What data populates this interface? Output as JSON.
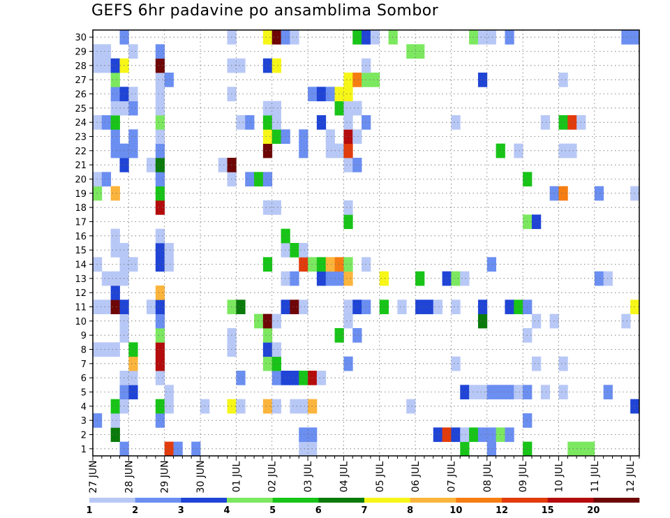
{
  "chart_data": {
    "type": "heatmap",
    "title": "GEFS 6hr padavine po ansamblima Sombor",
    "xlabel": "",
    "ylabel": "",
    "x_ticks": [
      "27 JUN",
      "28 JUN",
      "29 JUN",
      "30 JUN",
      "01 JUL",
      "02 JUL",
      "03 JUL",
      "04 JUL",
      "05 JUL",
      "06 JUL",
      "07 JUL",
      "08 JUL",
      "09 JUL",
      "10 JUL",
      "11 JUL",
      "12 JUL"
    ],
    "y_ticks": [
      "1",
      "2",
      "3",
      "4",
      "5",
      "6",
      "7",
      "8",
      "9",
      "10",
      "11",
      "12",
      "13",
      "14",
      "15",
      "16",
      "17",
      "18",
      "19",
      "20",
      "21",
      "22",
      "23",
      "24",
      "25",
      "26",
      "27",
      "28",
      "29",
      "30"
    ],
    "steps_per_day": 4,
    "x_steps": 61,
    "members": 30,
    "grid": true,
    "legend": {
      "position": "bottom",
      "boundaries": [
        "1",
        "2",
        "3",
        "4",
        "5",
        "6",
        "7",
        "8",
        "10",
        "12",
        "15",
        "20"
      ],
      "colors": [
        "#b8c8f6",
        "#6b8ef1",
        "#1f44d6",
        "#7ce860",
        "#18c418",
        "#0a7a0a",
        "#f6f618",
        "#fbb43c",
        "#f57d12",
        "#e23c0c",
        "#b40c0c",
        "#6e0606"
      ]
    },
    "cells": [
      {
        "m": 1,
        "cells": [
          [
            3,
            1
          ],
          [
            8,
            9
          ],
          [
            9,
            1
          ],
          [
            11,
            1
          ],
          [
            23,
            0
          ],
          [
            24,
            0
          ],
          [
            41,
            4
          ],
          [
            44,
            1
          ],
          [
            48,
            4
          ],
          [
            53,
            3
          ],
          [
            54,
            3
          ],
          [
            55,
            3
          ]
        ]
      },
      {
        "m": 2,
        "cells": [
          [
            2,
            5
          ],
          [
            23,
            1
          ],
          [
            24,
            1
          ],
          [
            38,
            2
          ],
          [
            39,
            9
          ],
          [
            40,
            2
          ],
          [
            41,
            0
          ],
          [
            42,
            4
          ],
          [
            43,
            1
          ],
          [
            44,
            1
          ],
          [
            45,
            3
          ],
          [
            46,
            1
          ]
        ]
      },
      {
        "m": 3,
        "cells": [
          [
            0,
            1
          ],
          [
            2,
            0
          ],
          [
            7,
            1
          ],
          [
            48,
            1
          ]
        ]
      },
      {
        "m": 4,
        "cells": [
          [
            2,
            4
          ],
          [
            3,
            0
          ],
          [
            7,
            4
          ],
          [
            8,
            0
          ],
          [
            12,
            0
          ],
          [
            15,
            6
          ],
          [
            16,
            0
          ],
          [
            19,
            7
          ],
          [
            20,
            0
          ],
          [
            22,
            0
          ],
          [
            23,
            0
          ],
          [
            24,
            7
          ],
          [
            35,
            0
          ],
          [
            60,
            2
          ]
        ]
      },
      {
        "m": 5,
        "cells": [
          [
            3,
            1
          ],
          [
            4,
            2
          ],
          [
            8,
            0
          ],
          [
            41,
            2
          ],
          [
            42,
            0
          ],
          [
            43,
            0
          ],
          [
            44,
            1
          ],
          [
            45,
            1
          ],
          [
            46,
            1
          ],
          [
            47,
            0
          ],
          [
            48,
            1
          ],
          [
            50,
            0
          ],
          [
            52,
            0
          ],
          [
            57,
            1
          ]
        ]
      },
      {
        "m": 6,
        "cells": [
          [
            3,
            0
          ],
          [
            4,
            0
          ],
          [
            7,
            0
          ],
          [
            16,
            1
          ],
          [
            20,
            1
          ],
          [
            21,
            2
          ],
          [
            22,
            2
          ],
          [
            23,
            4
          ],
          [
            24,
            10
          ],
          [
            25,
            0
          ]
        ]
      },
      {
        "m": 7,
        "cells": [
          [
            4,
            7
          ],
          [
            7,
            10
          ],
          [
            19,
            3
          ],
          [
            20,
            4
          ],
          [
            28,
            1
          ],
          [
            40,
            0
          ],
          [
            49,
            0
          ],
          [
            52,
            0
          ]
        ]
      },
      {
        "m": 8,
        "cells": [
          [
            0,
            0
          ],
          [
            1,
            0
          ],
          [
            2,
            0
          ],
          [
            4,
            4
          ],
          [
            7,
            10
          ],
          [
            15,
            0
          ],
          [
            19,
            2
          ],
          [
            20,
            0
          ]
        ]
      },
      {
        "m": 9,
        "cells": [
          [
            3,
            0
          ],
          [
            7,
            3
          ],
          [
            15,
            0
          ],
          [
            19,
            3
          ],
          [
            27,
            4
          ],
          [
            29,
            1
          ],
          [
            48,
            0
          ]
        ]
      },
      {
        "m": 10,
        "cells": [
          [
            3,
            0
          ],
          [
            7,
            1
          ],
          [
            18,
            3
          ],
          [
            19,
            11
          ],
          [
            20,
            0
          ],
          [
            28,
            0
          ],
          [
            43,
            5
          ],
          [
            49,
            0
          ],
          [
            51,
            0
          ],
          [
            59,
            0
          ]
        ]
      },
      {
        "m": 11,
        "cells": [
          [
            0,
            0
          ],
          [
            1,
            0
          ],
          [
            2,
            11
          ],
          [
            3,
            2
          ],
          [
            6,
            0
          ],
          [
            7,
            2
          ],
          [
            15,
            3
          ],
          [
            16,
            5
          ],
          [
            21,
            2
          ],
          [
            22,
            11
          ],
          [
            23,
            0
          ],
          [
            28,
            0
          ],
          [
            29,
            2
          ],
          [
            30,
            1
          ],
          [
            32,
            4
          ],
          [
            34,
            0
          ],
          [
            36,
            2
          ],
          [
            37,
            2
          ],
          [
            38,
            0
          ],
          [
            40,
            0
          ],
          [
            43,
            2
          ],
          [
            46,
            2
          ],
          [
            47,
            4
          ],
          [
            48,
            1
          ],
          [
            60,
            6
          ]
        ]
      },
      {
        "m": 12,
        "cells": [
          [
            2,
            2
          ],
          [
            7,
            7
          ]
        ]
      },
      {
        "m": 13,
        "cells": [
          [
            1,
            0
          ],
          [
            2,
            0
          ],
          [
            3,
            0
          ],
          [
            21,
            0
          ],
          [
            22,
            1
          ],
          [
            25,
            2
          ],
          [
            26,
            1
          ],
          [
            27,
            1
          ],
          [
            28,
            7
          ],
          [
            32,
            6
          ],
          [
            36,
            4
          ],
          [
            39,
            2
          ],
          [
            40,
            3
          ],
          [
            41,
            0
          ],
          [
            56,
            1
          ],
          [
            57,
            0
          ]
        ]
      },
      {
        "m": 14,
        "cells": [
          [
            0,
            0
          ],
          [
            3,
            0
          ],
          [
            4,
            0
          ],
          [
            7,
            2
          ],
          [
            8,
            0
          ],
          [
            19,
            4
          ],
          [
            23,
            9
          ],
          [
            24,
            3
          ],
          [
            25,
            4
          ],
          [
            26,
            7
          ],
          [
            27,
            8
          ],
          [
            28,
            3
          ],
          [
            30,
            0
          ],
          [
            44,
            1
          ]
        ]
      },
      {
        "m": 15,
        "cells": [
          [
            2,
            0
          ],
          [
            3,
            0
          ],
          [
            7,
            2
          ],
          [
            8,
            0
          ],
          [
            21,
            0
          ],
          [
            22,
            4
          ],
          [
            23,
            0
          ]
        ]
      },
      {
        "m": 16,
        "cells": [
          [
            2,
            0
          ],
          [
            7,
            0
          ],
          [
            21,
            4
          ]
        ]
      },
      {
        "m": 17,
        "cells": [
          [
            28,
            4
          ],
          [
            48,
            3
          ],
          [
            49,
            2
          ]
        ]
      },
      {
        "m": 18,
        "cells": [
          [
            7,
            10
          ],
          [
            19,
            0
          ],
          [
            20,
            0
          ],
          [
            28,
            0
          ]
        ]
      },
      {
        "m": 19,
        "cells": [
          [
            0,
            3
          ],
          [
            2,
            7
          ],
          [
            7,
            4
          ],
          [
            51,
            1
          ],
          [
            52,
            8
          ],
          [
            56,
            1
          ],
          [
            60,
            0
          ]
        ]
      },
      {
        "m": 20,
        "cells": [
          [
            0,
            0
          ],
          [
            1,
            1
          ],
          [
            7,
            1
          ],
          [
            15,
            0
          ],
          [
            17,
            1
          ],
          [
            18,
            4
          ],
          [
            19,
            1
          ],
          [
            48,
            4
          ]
        ]
      },
      {
        "m": 21,
        "cells": [
          [
            3,
            2
          ],
          [
            6,
            0
          ],
          [
            7,
            5
          ],
          [
            14,
            0
          ],
          [
            15,
            11
          ],
          [
            28,
            0
          ],
          [
            29,
            1
          ]
        ]
      },
      {
        "m": 22,
        "cells": [
          [
            2,
            1
          ],
          [
            3,
            1
          ],
          [
            4,
            1
          ],
          [
            7,
            1
          ],
          [
            19,
            11
          ],
          [
            23,
            1
          ],
          [
            26,
            0
          ],
          [
            27,
            0
          ],
          [
            28,
            9
          ],
          [
            45,
            4
          ],
          [
            47,
            0
          ],
          [
            52,
            0
          ],
          [
            53,
            0
          ]
        ]
      },
      {
        "m": 23,
        "cells": [
          [
            2,
            1
          ],
          [
            4,
            1
          ],
          [
            7,
            0
          ],
          [
            19,
            6
          ],
          [
            20,
            4
          ],
          [
            21,
            1
          ],
          [
            23,
            1
          ],
          [
            26,
            0
          ],
          [
            28,
            10
          ],
          [
            29,
            0
          ]
        ]
      },
      {
        "m": 24,
        "cells": [
          [
            0,
            0
          ],
          [
            1,
            1
          ],
          [
            2,
            4
          ],
          [
            7,
            3
          ],
          [
            16,
            0
          ],
          [
            17,
            1
          ],
          [
            19,
            4
          ],
          [
            20,
            0
          ],
          [
            25,
            2
          ],
          [
            28,
            0
          ],
          [
            30,
            1
          ],
          [
            40,
            0
          ],
          [
            50,
            0
          ],
          [
            52,
            4
          ],
          [
            53,
            9
          ],
          [
            54,
            0
          ]
        ]
      },
      {
        "m": 25,
        "cells": [
          [
            2,
            0
          ],
          [
            3,
            0
          ],
          [
            4,
            1
          ],
          [
            7,
            0
          ],
          [
            19,
            0
          ],
          [
            20,
            0
          ],
          [
            27,
            4
          ],
          [
            28,
            0
          ],
          [
            29,
            0
          ]
        ]
      },
      {
        "m": 26,
        "cells": [
          [
            2,
            1
          ],
          [
            3,
            2
          ],
          [
            4,
            0
          ],
          [
            7,
            0
          ],
          [
            15,
            0
          ],
          [
            24,
            1
          ],
          [
            25,
            2
          ],
          [
            26,
            1
          ],
          [
            27,
            6
          ],
          [
            28,
            6
          ]
        ]
      },
      {
        "m": 27,
        "cells": [
          [
            2,
            3
          ],
          [
            7,
            0
          ],
          [
            8,
            1
          ],
          [
            28,
            6
          ],
          [
            29,
            8
          ],
          [
            30,
            3
          ],
          [
            31,
            3
          ],
          [
            43,
            2
          ],
          [
            52,
            0
          ]
        ]
      },
      {
        "m": 28,
        "cells": [
          [
            0,
            0
          ],
          [
            1,
            0
          ],
          [
            2,
            2
          ],
          [
            3,
            6
          ],
          [
            7,
            11
          ],
          [
            15,
            0
          ],
          [
            16,
            0
          ],
          [
            19,
            2
          ],
          [
            20,
            6
          ],
          [
            30,
            0
          ]
        ]
      },
      {
        "m": 29,
        "cells": [
          [
            0,
            0
          ],
          [
            1,
            0
          ],
          [
            4,
            0
          ],
          [
            7,
            1
          ],
          [
            35,
            3
          ],
          [
            36,
            3
          ]
        ]
      },
      {
        "m": 30,
        "cells": [
          [
            3,
            1
          ],
          [
            15,
            0
          ],
          [
            19,
            6
          ],
          [
            20,
            11
          ],
          [
            21,
            1
          ],
          [
            22,
            0
          ],
          [
            29,
            4
          ],
          [
            30,
            2
          ],
          [
            31,
            0
          ],
          [
            33,
            3
          ],
          [
            42,
            3
          ],
          [
            43,
            0
          ],
          [
            44,
            0
          ],
          [
            46,
            1
          ],
          [
            59,
            1
          ],
          [
            60,
            1
          ]
        ]
      }
    ]
  }
}
